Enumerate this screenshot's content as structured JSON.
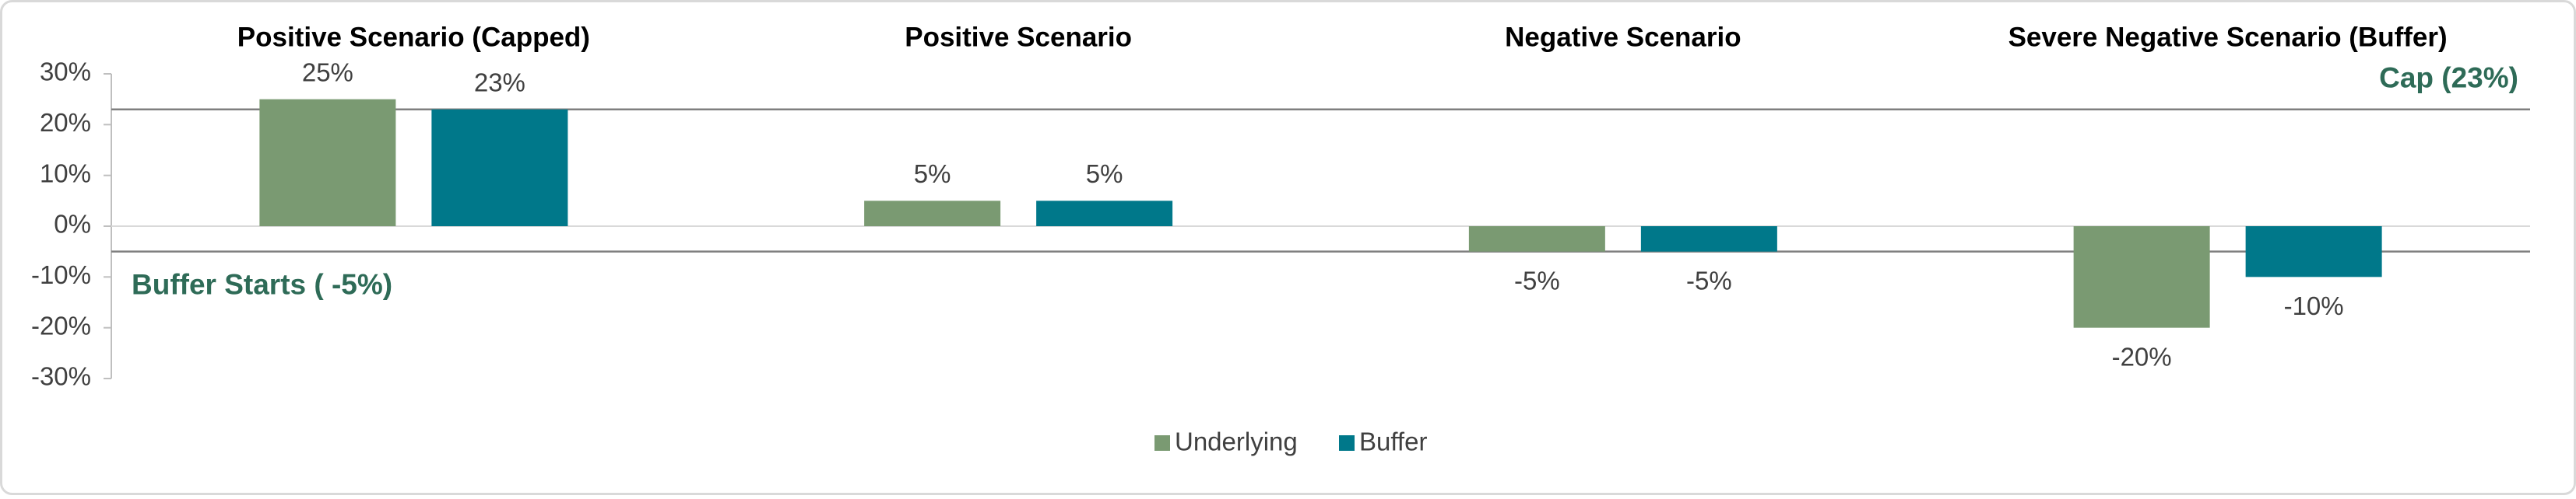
{
  "chart_data": {
    "type": "bar",
    "categories": [
      "Positive Scenario (Capped)",
      "Positive Scenario",
      "Negative Scenario",
      "Severe Negative Scenario (Buffer)"
    ],
    "series": [
      {
        "name": "Underlying",
        "color": "#7a9a72",
        "values": [
          25,
          5,
          -5,
          -20
        ],
        "value_labels": [
          "25%",
          "5%",
          "-5%",
          "-20%"
        ]
      },
      {
        "name": "Buffer",
        "color": "#00788a",
        "values": [
          23,
          5,
          -5,
          -10
        ],
        "value_labels": [
          "23%",
          "5%",
          "-5%",
          "-10%"
        ]
      }
    ],
    "ylim": [
      -30,
      30
    ],
    "yticks": [
      {
        "value": 30,
        "label": "30%"
      },
      {
        "value": 20,
        "label": "20%"
      },
      {
        "value": 10,
        "label": "10%"
      },
      {
        "value": 0,
        "label": "0%"
      },
      {
        "value": -10,
        "label": "-10%"
      },
      {
        "value": -20,
        "label": "-20%"
      },
      {
        "value": -30,
        "label": "-30%"
      }
    ],
    "reference_lines": [
      {
        "value": 23,
        "label": "Cap (23%)",
        "label_position": "right"
      },
      {
        "value": -5,
        "label": "Buffer Starts ( -5%)",
        "label_position": "left"
      }
    ],
    "grid": false,
    "legend": "bottom"
  }
}
